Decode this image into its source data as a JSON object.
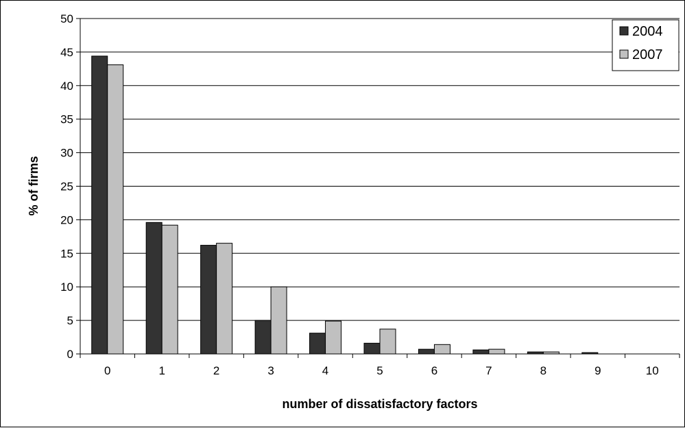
{
  "chart_data": {
    "type": "bar",
    "categories": [
      "0",
      "1",
      "2",
      "3",
      "4",
      "5",
      "6",
      "7",
      "8",
      "9",
      "10"
    ],
    "series": [
      {
        "name": "2004",
        "color": "#333333",
        "values": [
          44.4,
          19.6,
          16.2,
          5.0,
          3.1,
          1.6,
          0.7,
          0.6,
          0.3,
          0.2,
          0.0
        ]
      },
      {
        "name": "2007",
        "color": "#c0c0c0",
        "values": [
          43.1,
          19.2,
          16.5,
          10.0,
          4.9,
          3.7,
          1.4,
          0.7,
          0.3,
          0.0,
          0.0
        ]
      }
    ],
    "title": "",
    "xlabel": "number of dissatisfactory factors",
    "ylabel": "% of firms",
    "ylim": [
      0,
      50
    ],
    "yticks": [
      "0",
      "5",
      "10",
      "15",
      "20",
      "25",
      "30",
      "35",
      "40",
      "45",
      "50"
    ],
    "grid": true,
    "legend_position": "top-right"
  }
}
